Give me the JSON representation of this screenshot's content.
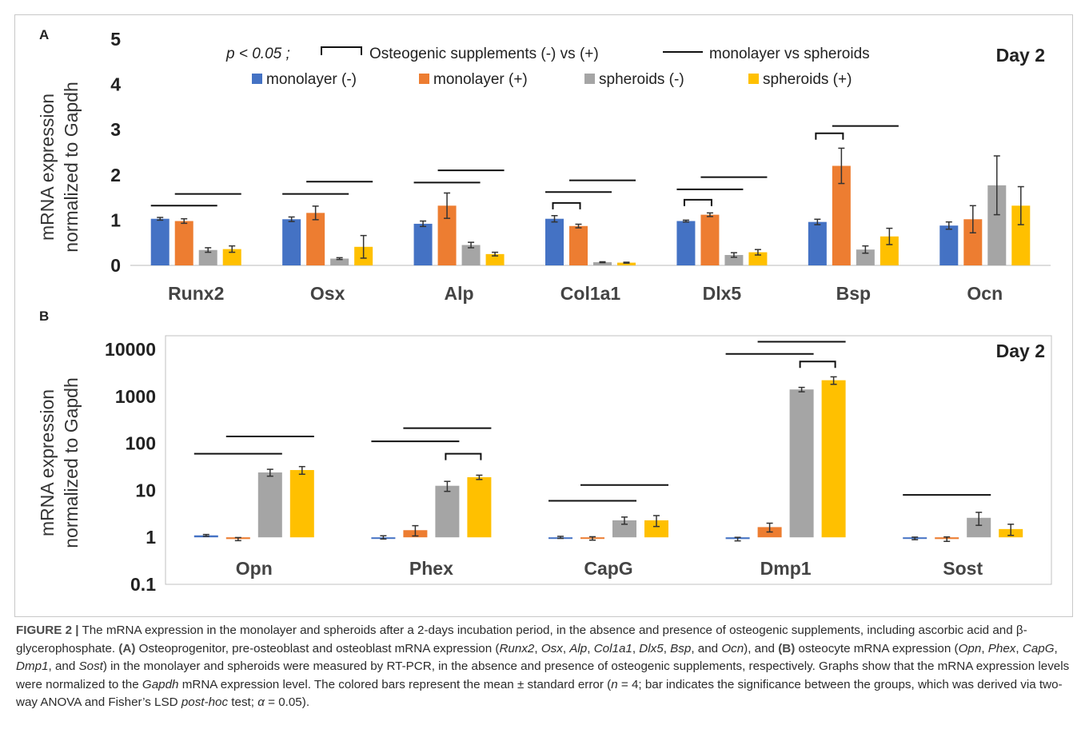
{
  "colors": {
    "monolayer_minus": "#4472C4",
    "monolayer_plus": "#ED7D31",
    "spheroids_minus": "#A5A5A5",
    "spheroids_plus": "#FFC000",
    "sig_line": "#111111",
    "errorbar": "#333333"
  },
  "panelA": {
    "label": "A",
    "day_label": "Day 2",
    "legend": {
      "p_label": "p < 0.05 ;",
      "bracket_label": "Osteogenic supplements (-) vs (+)",
      "line_label": "monolayer vs spheroids",
      "series_labels": [
        "monolayer (-)",
        "monolayer (+)",
        "spheroids (-)",
        "spheroids (+)"
      ]
    },
    "y_title_line1": "mRNA expression",
    "y_title_line2": "normalized to Gapdh",
    "y_ticks": [
      "0",
      "1",
      "2",
      "3",
      "4",
      "5"
    ]
  },
  "panelB": {
    "label": "B",
    "day_label": "Day 2",
    "y_title_line1": "mRNA expression",
    "y_title_line2": "normalized to Gapdh",
    "y_ticks": [
      "0.1",
      "1",
      "10",
      "100",
      "1000",
      "10000"
    ]
  },
  "chart_data": [
    {
      "type": "bar",
      "panel": "A",
      "categories": [
        "Runx2",
        "Osx",
        "Alp",
        "Col1a1",
        "Dlx5",
        "Bsp",
        "Ocn"
      ],
      "ylabel": "mRNA expression normalized to Gapdh",
      "ylim": [
        0,
        5
      ],
      "series": [
        {
          "name": "monolayer (-)",
          "values": [
            1.03,
            1.02,
            0.92,
            1.03,
            0.98,
            0.96,
            0.88
          ],
          "errors": [
            0.03,
            0.05,
            0.06,
            0.07,
            0.02,
            0.06,
            0.08
          ]
        },
        {
          "name": "monolayer (+)",
          "values": [
            0.98,
            1.16,
            1.32,
            0.87,
            1.12,
            2.2,
            1.02
          ],
          "errors": [
            0.05,
            0.15,
            0.28,
            0.04,
            0.04,
            0.39,
            0.3
          ]
        },
        {
          "name": "spheroids (-)",
          "values": [
            0.34,
            0.15,
            0.45,
            0.07,
            0.23,
            0.35,
            1.77
          ],
          "errors": [
            0.05,
            0.02,
            0.06,
            0.01,
            0.05,
            0.08,
            0.65
          ]
        },
        {
          "name": "spheroids (+)",
          "values": [
            0.36,
            0.41,
            0.25,
            0.06,
            0.29,
            0.64,
            1.32
          ],
          "errors": [
            0.07,
            0.25,
            0.04,
            0.01,
            0.06,
            0.18,
            0.42
          ]
        }
      ],
      "significance": {
        "brackets_minus_vs_plus": [
          {
            "category": "Col1a1",
            "pair": "monolayer",
            "y": 1.38
          },
          {
            "category": "Dlx5",
            "pair": "monolayer",
            "y": 1.45
          },
          {
            "category": "Bsp",
            "pair": "monolayer",
            "y": 2.92
          }
        ],
        "lines_monolayer_vs_spheroids": [
          {
            "category": "Runx2",
            "condition": "-",
            "y": 1.32
          },
          {
            "category": "Runx2",
            "condition": "+",
            "y": 1.58
          },
          {
            "category": "Osx",
            "condition": "-",
            "y": 1.58
          },
          {
            "category": "Osx",
            "condition": "+",
            "y": 1.85
          },
          {
            "category": "Alp",
            "condition": "-",
            "y": 1.83
          },
          {
            "category": "Alp",
            "condition": "+",
            "y": 2.1
          },
          {
            "category": "Col1a1",
            "condition": "-",
            "y": 1.62
          },
          {
            "category": "Col1a1",
            "condition": "+",
            "y": 1.88
          },
          {
            "category": "Dlx5",
            "condition": "-",
            "y": 1.68
          },
          {
            "category": "Dlx5",
            "condition": "+",
            "y": 1.95
          },
          {
            "category": "Bsp",
            "condition": "+",
            "y": 3.08
          }
        ]
      },
      "legend_position": "top",
      "grid": false
    },
    {
      "type": "bar",
      "panel": "B",
      "categories": [
        "Opn",
        "Phex",
        "CapG",
        "Dmp1",
        "Sost"
      ],
      "ylabel": "mRNA expression normalized to Gapdh",
      "yscale": "log",
      "ylim": [
        0.1,
        10000
      ],
      "series": [
        {
          "name": "monolayer (-)",
          "values": [
            1.1,
            1.0,
            1.0,
            0.92,
            0.95
          ],
          "errors": [
            0.05,
            0.08,
            0.05,
            0.08,
            0.06
          ]
        },
        {
          "name": "monolayer (+)",
          "values": [
            0.92,
            1.42,
            0.95,
            1.65,
            0.92
          ],
          "errors": [
            0.07,
            0.35,
            0.08,
            0.35,
            0.1
          ]
        },
        {
          "name": "spheroids (-)",
          "values": [
            24,
            12.5,
            2.3,
            1400,
            2.6
          ],
          "errors": [
            4,
            3,
            0.4,
            150,
            0.8
          ]
        },
        {
          "name": "spheroids (+)",
          "values": [
            27,
            19,
            2.3,
            2200,
            1.5
          ],
          "errors": [
            5,
            2,
            0.6,
            400,
            0.4
          ]
        }
      ],
      "significance": {
        "brackets_minus_vs_plus": [
          {
            "category": "Phex",
            "pair": "spheroids",
            "y": 60
          },
          {
            "category": "Dmp1",
            "pair": "spheroids",
            "y": 5500
          }
        ],
        "lines_monolayer_vs_spheroids": [
          {
            "category": "Opn",
            "condition": "-",
            "y": 60
          },
          {
            "category": "Opn",
            "condition": "+",
            "y": 140
          },
          {
            "category": "Phex",
            "condition": "-",
            "y": 110
          },
          {
            "category": "Phex",
            "condition": "+",
            "y": 210
          },
          {
            "category": "CapG",
            "condition": "-",
            "y": 6
          },
          {
            "category": "CapG",
            "condition": "+",
            "y": 13
          },
          {
            "category": "Dmp1",
            "condition": "-",
            "y": 8000
          },
          {
            "category": "Dmp1",
            "condition": "+",
            "y": 14500
          },
          {
            "category": "Sost",
            "condition": "-",
            "y": 8
          }
        ]
      },
      "grid": false
    }
  ],
  "caption": {
    "figure_label": "FIGURE 2 |",
    "seg1": " The mRNA expression in the monolayer and spheroids after a 2-days incubation period, in the absence and presence of osteogenic supplements, including ascorbic acid and β-glycerophosphate. ",
    "labelA": "(A)",
    "seg2": " Osteoprogenitor, pre-osteoblast and osteoblast mRNA expression (",
    "genesA": [
      "Runx2",
      "Osx",
      "Alp",
      "Col1a1",
      "Dlx5",
      "Bsp",
      "Ocn"
    ],
    "seg3": "), and ",
    "labelB": "(B)",
    "seg4": " osteocyte mRNA expression (",
    "genesB": [
      "Opn",
      "Phex",
      "CapG",
      "Dmp1",
      "Sost"
    ],
    "seg5": ") in the monolayer and spheroids were measured by RT-PCR, in the absence and presence of osteogenic supplements, respectively. Graphs show that the mRNA expression levels were normalized to the ",
    "gapdh": "Gapdh",
    "seg6": " mRNA expression level. The colored bars represent the mean ± standard error (",
    "n_text": "n",
    "seg7": " = 4; bar indicates the significance between the groups, which was derived via two-way ANOVA and Fisher’s LSD ",
    "posthoc": "post-hoc",
    "seg8": " test; ",
    "alpha": "α",
    "seg9": " = 0.05)."
  }
}
